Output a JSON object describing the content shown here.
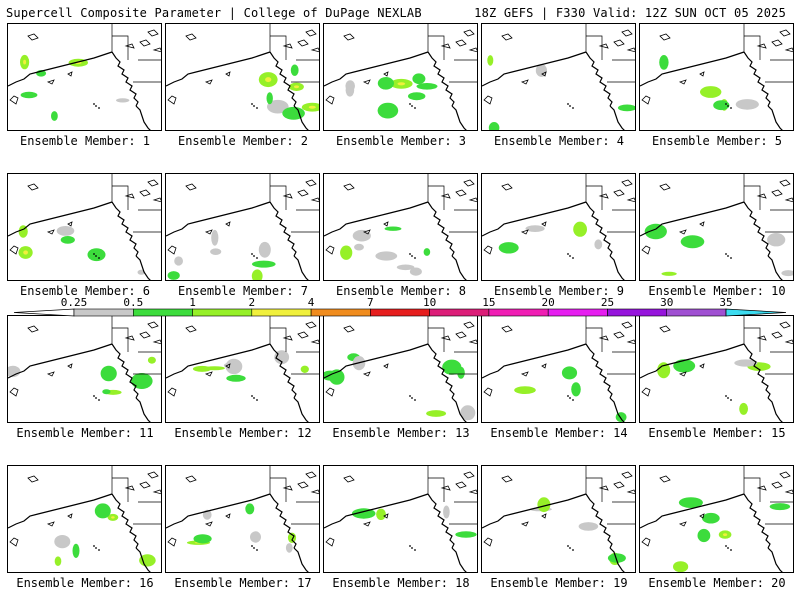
{
  "header": {
    "left_title": "Supercell Composite Parameter | College of DuPage NEXLAB",
    "right_title": "18Z GEFS | F330 Valid: 12Z SUN OCT 05 2025"
  },
  "panel_label_prefix": "Ensemble Member:",
  "members": [
    1,
    2,
    3,
    4,
    5,
    6,
    7,
    8,
    9,
    10,
    11,
    12,
    13,
    14,
    15,
    16,
    17,
    18,
    19,
    20
  ],
  "colorbar": {
    "ticks": [
      "0.25",
      "0.5",
      "1",
      "2",
      "4",
      "7",
      "10",
      "15",
      "20",
      "25",
      "30",
      "35"
    ],
    "colors": [
      "#c8c8c8",
      "#3cdc3c",
      "#96f028",
      "#f0f03c",
      "#f08c1e",
      "#e61e1e",
      "#dc1e78",
      "#f01eb4",
      "#e61ef0",
      "#9614dc",
      "#a050d2",
      "#3cdcf0"
    ]
  },
  "map_colors": {
    "coast": "#000000",
    "scp_low": "#c8c8c8",
    "scp_mid": "#3cdc3c",
    "scp_high": "#96f028",
    "scp_top": "#f0f03c"
  }
}
